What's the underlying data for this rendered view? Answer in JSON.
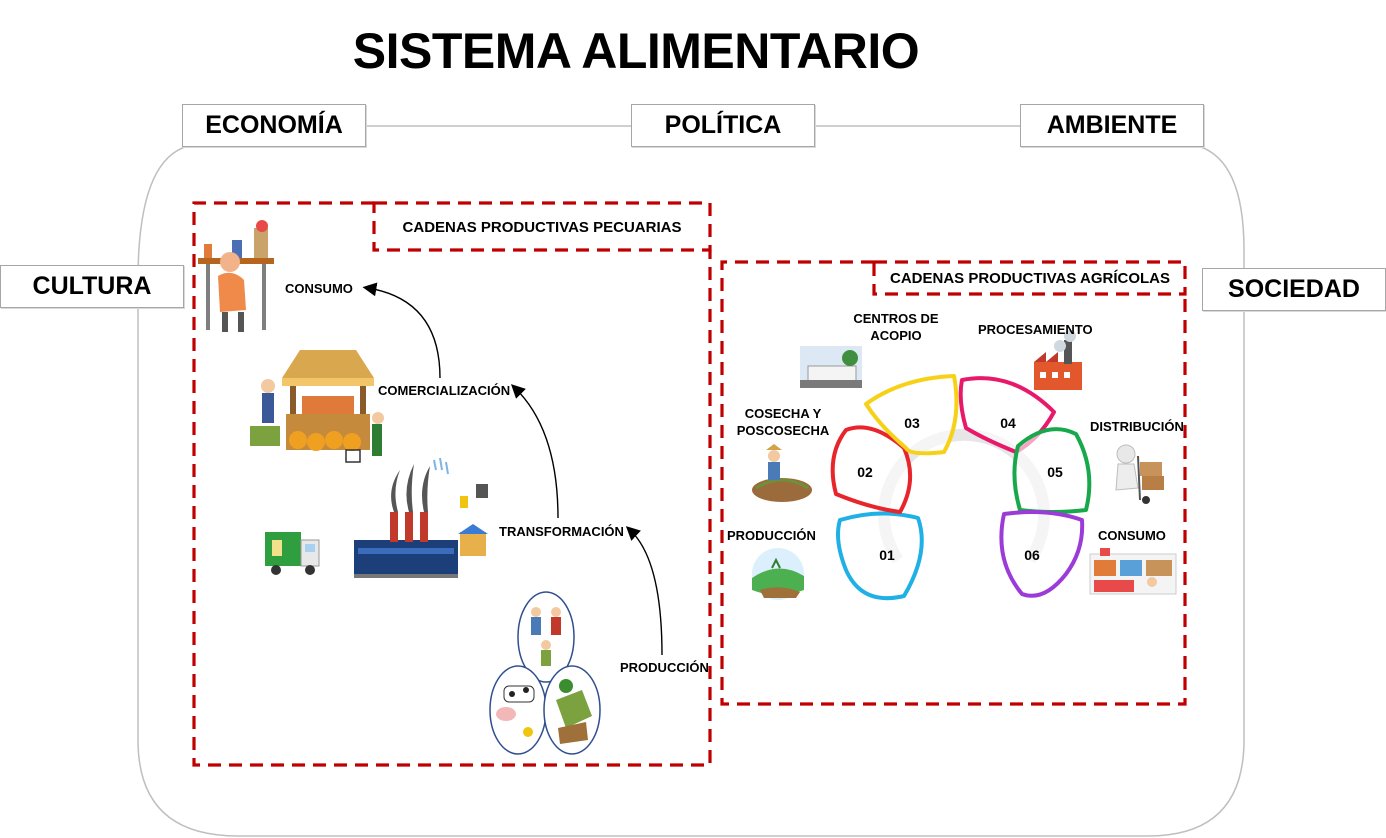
{
  "title": "SISTEMA ALIMENTARIO",
  "context": {
    "economia": "ECONOMÍA",
    "politica": "POLÍTICA",
    "ambiente": "AMBIENTE",
    "cultura": "CULTURA",
    "sociedad": "SOCIEDAD"
  },
  "pecuarias": {
    "title": "CADENAS PRODUCTIVAS PECUARIAS",
    "stages": {
      "consumo": "CONSUMO",
      "comercializacion": "COMERCIALIZACIÓN",
      "transformacion": "TRANSFORMACIÓN",
      "produccion": "PRODUCCIÓN"
    }
  },
  "agricolas": {
    "title": "CADENAS PRODUCTIVAS AGRÍCOLAS",
    "labels": {
      "centros": "CENTROS DE ACOPIO",
      "procesamiento": "PROCESAMIENTO",
      "cosecha": "COSECHA Y POSCOSECHA",
      "distribucion": "DISTRIBUCIÓN",
      "produccion": "PRODUCCIÓN",
      "consumo": "CONSUMO"
    },
    "steps": [
      {
        "num": "01",
        "color": "#1fb0e6"
      },
      {
        "num": "02",
        "color": "#e8252a"
      },
      {
        "num": "03",
        "color": "#f7d117"
      },
      {
        "num": "04",
        "color": "#e8196b"
      },
      {
        "num": "05",
        "color": "#18a84c"
      },
      {
        "num": "06",
        "color": "#9b3bd8"
      }
    ]
  },
  "colors": {
    "dashed_border": "#c00000",
    "pillar_border": "#a6a6a6",
    "ring": "#e6e6e6"
  }
}
